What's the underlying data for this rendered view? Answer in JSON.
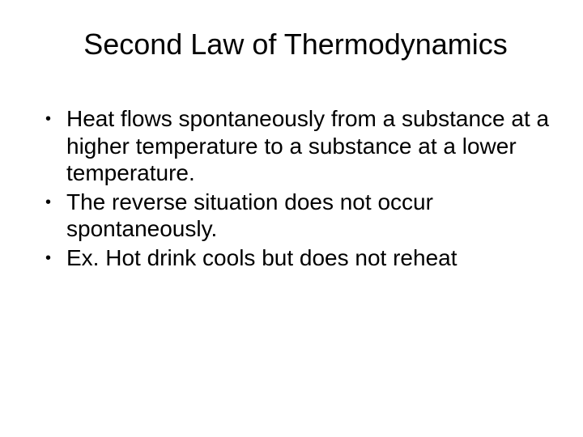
{
  "slide": {
    "title": "Second Law of Thermodynamics",
    "bullets": [
      "Heat flows spontaneously from a substance at a higher temperature to a substance at a lower temperature.",
      "The reverse situation does not occur spontaneously.",
      "Ex. Hot drink cools but does not reheat"
    ],
    "background_color": "#ffffff",
    "text_color": "#000000",
    "title_fontsize": 36,
    "body_fontsize": 28,
    "font_family": "Arial"
  }
}
